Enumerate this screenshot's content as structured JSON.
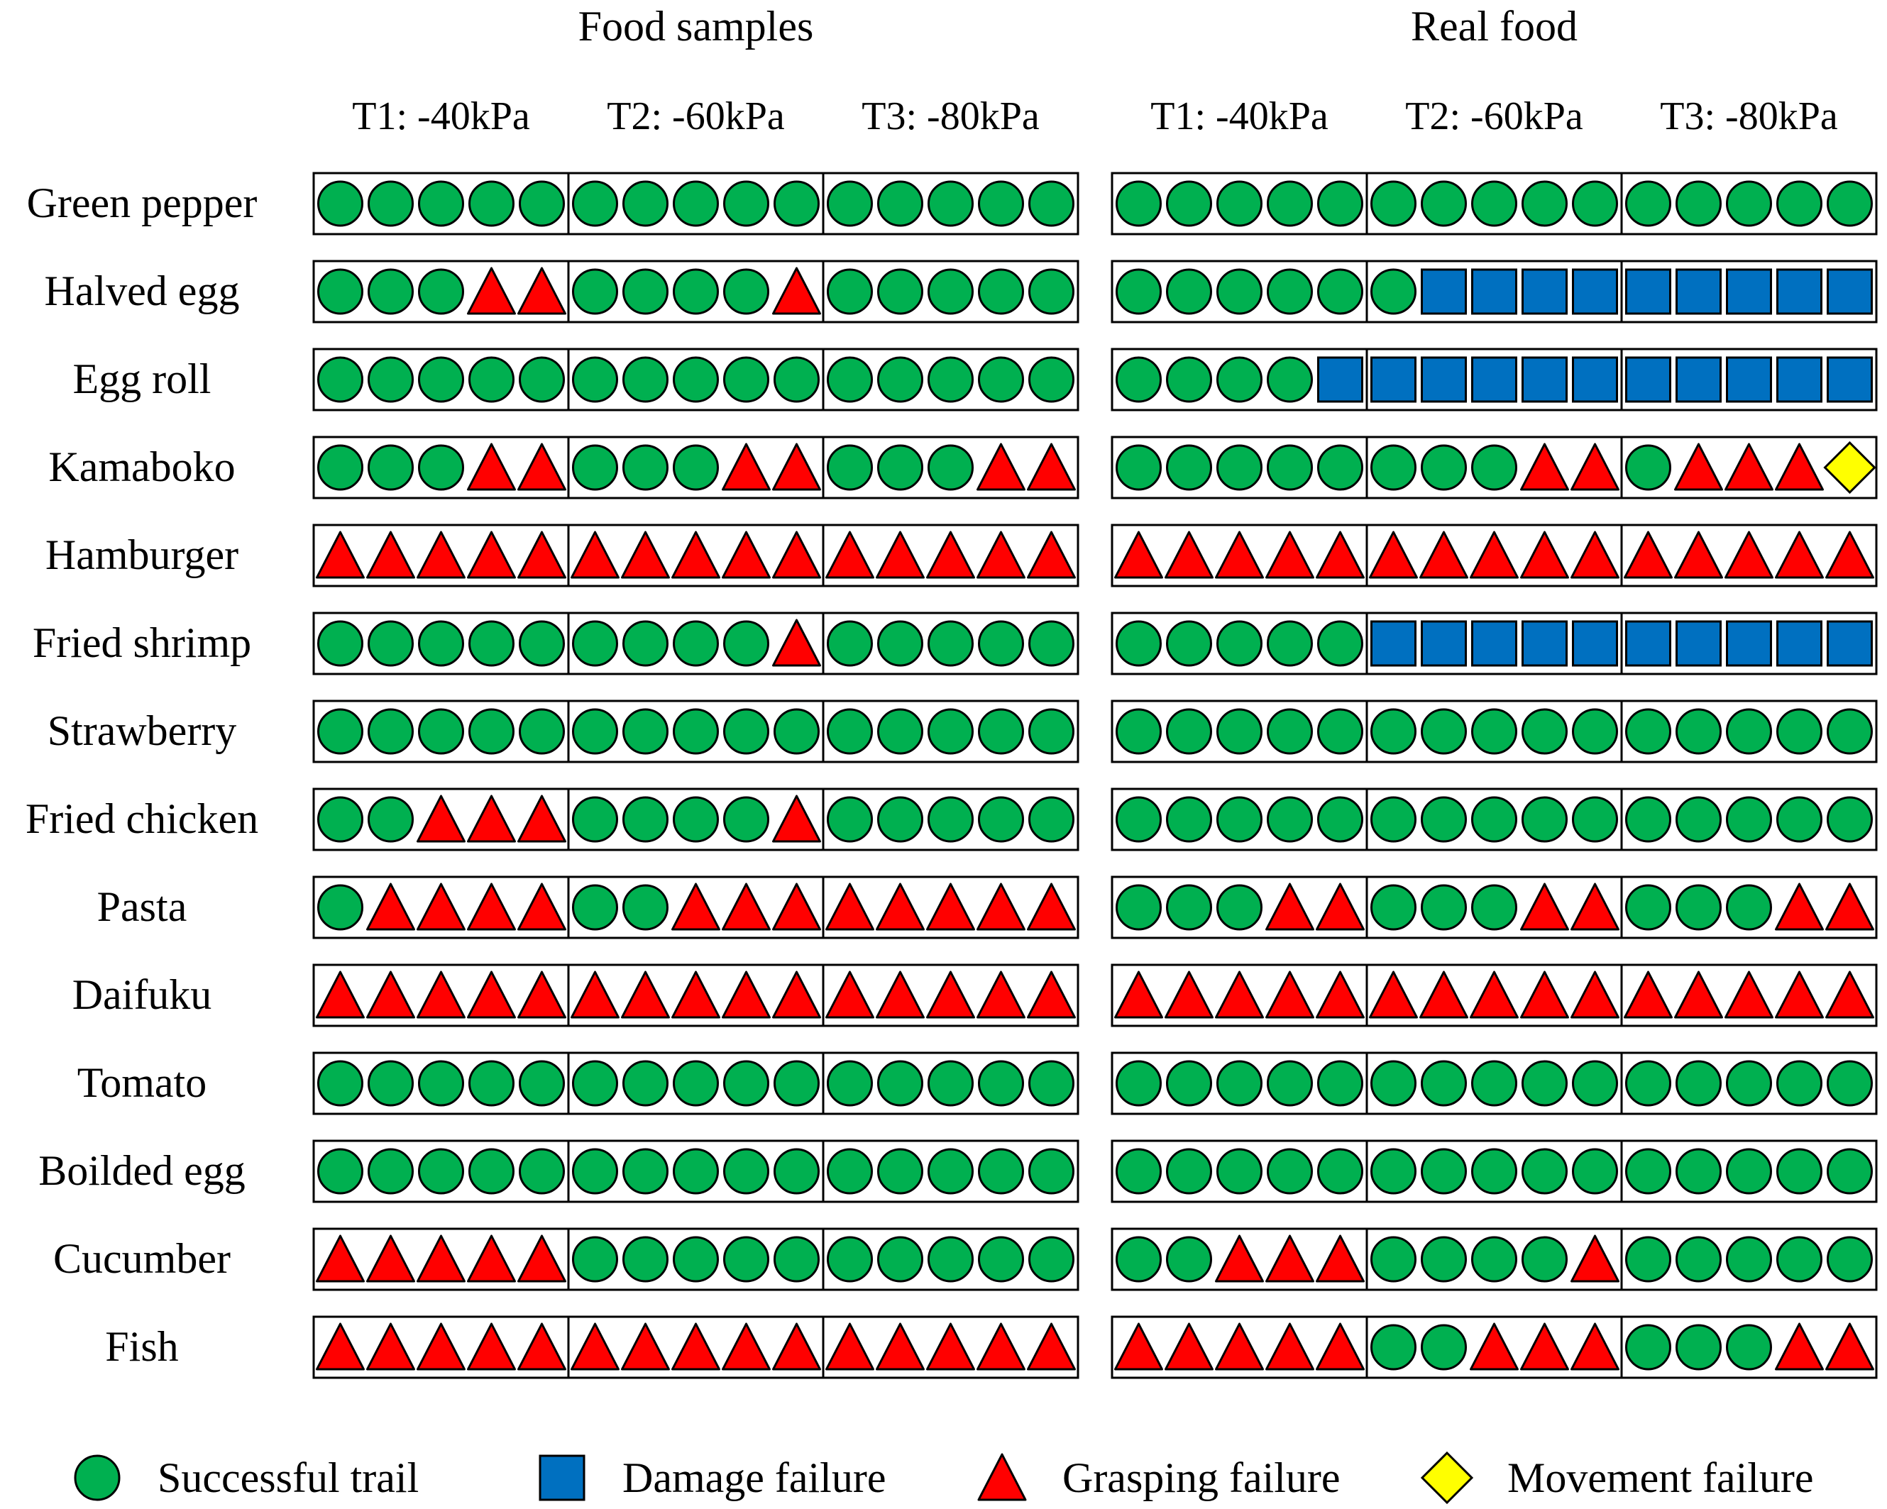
{
  "groups": [
    "Food samples",
    "Real food"
  ],
  "conditions": [
    "T1: -40kPa",
    "T2: -60kPa",
    "T3: -80kPa"
  ],
  "rows": [
    {
      "name": "Green pepper",
      "samples": [
        "SSSSS",
        "SSSSS",
        "SSSSS"
      ],
      "real": [
        "SSSSS",
        "SSSSS",
        "SSSSS"
      ]
    },
    {
      "name": "Halved egg",
      "samples": [
        "SSSGG",
        "SSSSG",
        "SSSSS"
      ],
      "real": [
        "SSSSS",
        "SDDDD",
        "DDDDD"
      ]
    },
    {
      "name": "Egg roll",
      "samples": [
        "SSSSS",
        "SSSSS",
        "SSSSS"
      ],
      "real": [
        "SSSSD",
        "DDDDD",
        "DDDDD"
      ]
    },
    {
      "name": "Kamaboko",
      "samples": [
        "SSSGG",
        "SSSGG",
        "SSSGG"
      ],
      "real": [
        "SSSSS",
        "SSSGG",
        "SGGGM"
      ]
    },
    {
      "name": "Hamburger",
      "samples": [
        "GGGGG",
        "GGGGG",
        "GGGGG"
      ],
      "real": [
        "GGGGG",
        "GGGGG",
        "GGGGG"
      ]
    },
    {
      "name": "Fried shrimp",
      "samples": [
        "SSSSS",
        "SSSSG",
        "SSSSS"
      ],
      "real": [
        "SSSSS",
        "DDDDD",
        "DDDDD"
      ]
    },
    {
      "name": "Strawberry",
      "samples": [
        "SSSSS",
        "SSSSS",
        "SSSSS"
      ],
      "real": [
        "SSSSS",
        "SSSSS",
        "SSSSS"
      ]
    },
    {
      "name": "Fried chicken",
      "samples": [
        "SSGGG",
        "SSSSG",
        "SSSSS"
      ],
      "real": [
        "SSSSS",
        "SSSSS",
        "SSSSS"
      ]
    },
    {
      "name": "Pasta",
      "samples": [
        "SGGGG",
        "SSGGG",
        "GGGGG"
      ],
      "real": [
        "SSSGG",
        "SSSGG",
        "SSSGG"
      ]
    },
    {
      "name": "Daifuku",
      "samples": [
        "GGGGG",
        "GGGGG",
        "GGGGG"
      ],
      "real": [
        "GGGGG",
        "GGGGG",
        "GGGGG"
      ]
    },
    {
      "name": "Tomato",
      "samples": [
        "SSSSS",
        "SSSSS",
        "SSSSS"
      ],
      "real": [
        "SSSSS",
        "SSSSS",
        "SSSSS"
      ]
    },
    {
      "name": "Boilded egg",
      "samples": [
        "SSSSS",
        "SSSSS",
        "SSSSS"
      ],
      "real": [
        "SSSSS",
        "SSSSS",
        "SSSSS"
      ]
    },
    {
      "name": "Cucumber",
      "samples": [
        "GGGGG",
        "SSSSS",
        "SSSSS"
      ],
      "real": [
        "SSGGG",
        "SSSSG",
        "SSSSS"
      ]
    },
    {
      "name": "Fish",
      "samples": [
        "GGGGG",
        "GGGGG",
        "GGGGG"
      ],
      "real": [
        "GGGGG",
        "SSGGG",
        "SSSGG"
      ]
    }
  ],
  "legend": [
    {
      "code": "S",
      "shape": "circle",
      "label": "Successful trail",
      "color": "#00B050"
    },
    {
      "code": "D",
      "shape": "square",
      "label": "Damage failure",
      "color": "#0070C0"
    },
    {
      "code": "G",
      "shape": "triangle",
      "label": "Grasping failure",
      "color": "#FF0000"
    },
    {
      "code": "M",
      "shape": "diamond",
      "label": "Movement failure",
      "color": "#FFFF00"
    }
  ]
}
